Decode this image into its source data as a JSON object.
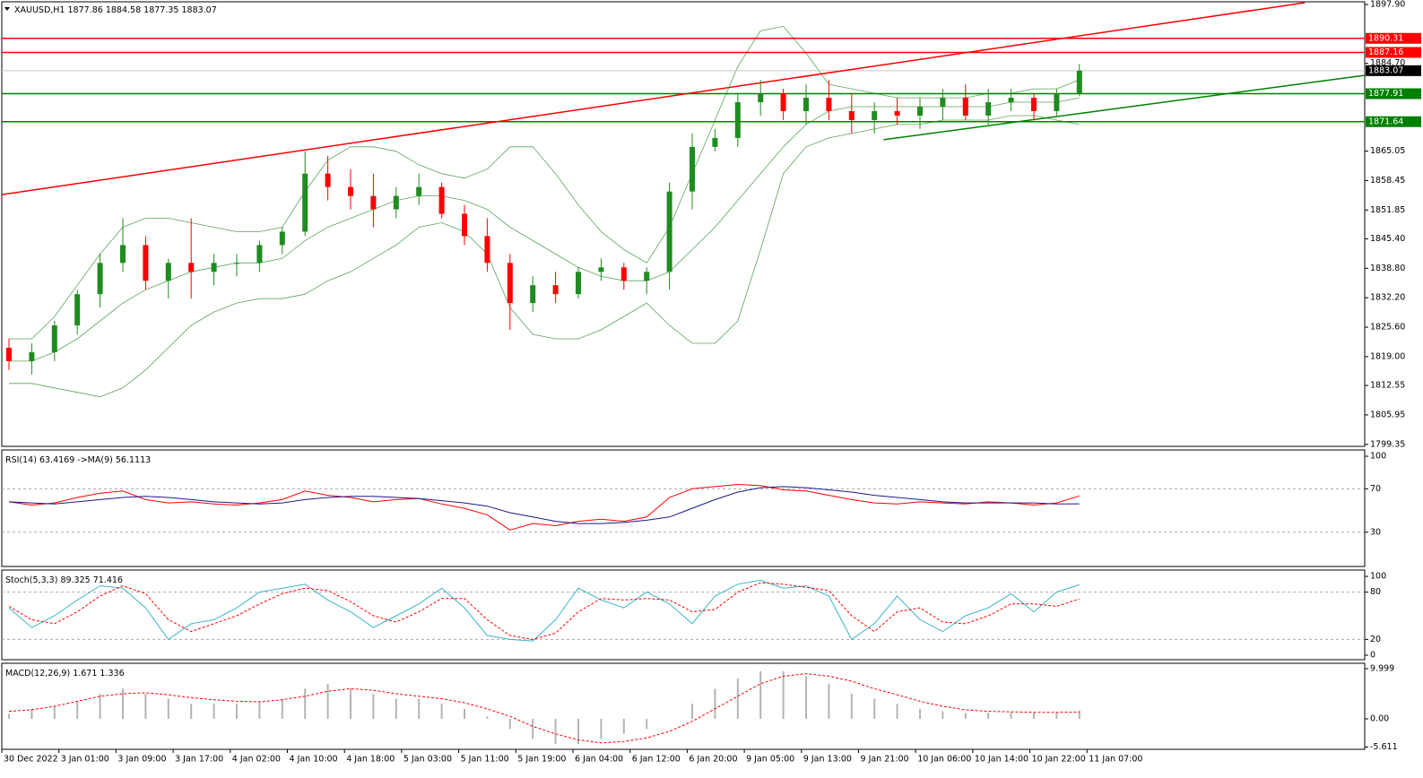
{
  "chart_data": [
    {
      "type": "candlestick",
      "symbol": "XAUUSD,H1",
      "bull_color": "#1e8c1e",
      "bear_color": "#ff0000",
      "candles": [
        [
          1821,
          1823,
          1816,
          1818
        ],
        [
          1818,
          1822,
          1815,
          1820
        ],
        [
          1820,
          1827,
          1818,
          1826
        ],
        [
          1826,
          1834,
          1824,
          1833
        ],
        [
          1833,
          1842,
          1830,
          1840
        ],
        [
          1840,
          1850,
          1838,
          1844
        ],
        [
          1844,
          1846,
          1834,
          1836
        ],
        [
          1836,
          1841,
          1832,
          1840
        ],
        [
          1840,
          1850,
          1832,
          1838
        ],
        [
          1838,
          1842,
          1835,
          1840
        ],
        [
          1840,
          1842,
          1837,
          1840
        ],
        [
          1840,
          1845,
          1838,
          1844
        ],
        [
          1844,
          1848,
          1842,
          1847
        ],
        [
          1847,
          1865,
          1846,
          1860
        ],
        [
          1860,
          1864,
          1854,
          1857
        ],
        [
          1857,
          1861,
          1852,
          1855
        ],
        [
          1855,
          1860,
          1848,
          1852
        ],
        [
          1852,
          1857,
          1850,
          1855
        ],
        [
          1855,
          1860,
          1853,
          1857
        ],
        [
          1857,
          1858,
          1850,
          1851
        ],
        [
          1851,
          1853,
          1844,
          1846
        ],
        [
          1846,
          1850,
          1838,
          1840
        ],
        [
          1840,
          1842,
          1825,
          1831
        ],
        [
          1831,
          1837,
          1829,
          1835
        ],
        [
          1835,
          1838,
          1831,
          1833
        ],
        [
          1833,
          1839,
          1832,
          1838
        ],
        [
          1838,
          1841,
          1836,
          1839
        ],
        [
          1839,
          1840,
          1834,
          1836
        ],
        [
          1836,
          1839,
          1833,
          1838
        ],
        [
          1838,
          1858,
          1834,
          1856
        ],
        [
          1856,
          1869,
          1852,
          1866
        ],
        [
          1866,
          1870,
          1865,
          1868
        ],
        [
          1868,
          1878,
          1866,
          1876
        ],
        [
          1876,
          1881,
          1873,
          1878
        ],
        [
          1878,
          1879,
          1872,
          1874
        ],
        [
          1874,
          1880,
          1871,
          1877
        ],
        [
          1877,
          1881,
          1872,
          1874
        ],
        [
          1874,
          1878,
          1869,
          1872
        ],
        [
          1872,
          1876,
          1869,
          1874
        ],
        [
          1874,
          1877,
          1871,
          1873
        ],
        [
          1873,
          1877,
          1870,
          1875
        ],
        [
          1875,
          1879,
          1872,
          1877
        ],
        [
          1877,
          1880,
          1872,
          1873
        ],
        [
          1873,
          1879,
          1871,
          1876
        ],
        [
          1876,
          1879,
          1874,
          1877
        ],
        [
          1877,
          1878,
          1872,
          1874
        ],
        [
          1874,
          1879,
          1873,
          1878
        ],
        [
          1877.86,
          1884.58,
          1877.35,
          1883.07
        ]
      ],
      "bollinger": {
        "color": "#5aa55a",
        "upper": [
          1823,
          1823,
          1828,
          1835,
          1842,
          1848,
          1850,
          1850,
          1849,
          1848,
          1847,
          1847,
          1848,
          1856,
          1863,
          1866,
          1866,
          1865,
          1862,
          1860,
          1859,
          1861,
          1866,
          1866,
          1860,
          1853,
          1847,
          1843,
          1840,
          1848,
          1860,
          1872,
          1884,
          1892,
          1893,
          1887,
          1880,
          1879,
          1878,
          1877,
          1877,
          1877,
          1877,
          1878,
          1878,
          1879,
          1879,
          1881
        ],
        "middle": [
          1818,
          1818,
          1820,
          1823,
          1827,
          1831,
          1834,
          1836,
          1838,
          1839,
          1840,
          1840,
          1841,
          1845,
          1848,
          1850,
          1852,
          1854,
          1855,
          1855,
          1854,
          1852,
          1848,
          1845,
          1842,
          1839,
          1837,
          1836,
          1836,
          1838,
          1843,
          1848,
          1854,
          1860,
          1866,
          1871,
          1874,
          1875,
          1875,
          1875,
          1875,
          1875,
          1875,
          1875,
          1876,
          1876,
          1876,
          1877
        ],
        "lower": [
          1813,
          1813,
          1812,
          1811,
          1810,
          1812,
          1816,
          1821,
          1826,
          1829,
          1831,
          1832,
          1832,
          1833,
          1836,
          1838,
          1841,
          1844,
          1848,
          1849,
          1847,
          1842,
          1830,
          1824,
          1823,
          1823,
          1825,
          1828,
          1831,
          1826,
          1822,
          1822,
          1827,
          1843,
          1860,
          1866,
          1868,
          1869,
          1870,
          1871,
          1871,
          1872,
          1872,
          1872,
          1873,
          1873,
          1872,
          1871
        ]
      },
      "levels": [
        {
          "value": 1890.31,
          "color": "#ff0000"
        },
        {
          "value": 1887.16,
          "color": "#ff0000"
        },
        {
          "value": 1877.91,
          "color": "#008000"
        },
        {
          "value": 1871.64,
          "color": "#008000"
        }
      ],
      "trendlines": [
        {
          "color": "#ff0000",
          "start": [
            -0.31,
            1855.3
          ],
          "end": [
            56.9,
            1898.3
          ]
        },
        {
          "color": "#008000",
          "start": [
            38.4,
            1867.6
          ],
          "end": [
            59.5,
            1882.0
          ]
        }
      ],
      "ylim": [
        1798.9,
        1898.5
      ],
      "yticks": [
        {
          "value": 1897.9,
          "label": "1897.90"
        },
        {
          "value": 1884.7,
          "label": "1884.70"
        },
        1865.05,
        1858.45,
        1851.85,
        {
          "value": 1845.4,
          "label": "1845.40"
        },
        {
          "value": 1838.8,
          "label": "1838.80"
        },
        {
          "value": 1832.2,
          "label": "1832.20"
        },
        {
          "value": 1825.6,
          "label": "1825.60"
        },
        {
          "value": 1819.0,
          "label": "1819.00"
        },
        1812.55,
        1805.95,
        1799.35
      ],
      "x_labels": [
        "30 Dec 2022",
        "3 Jan 01:00",
        "3 Jan 09:00",
        "3 Jan 17:00",
        "4 Jan 02:00",
        "4 Jan 10:00",
        "4 Jan 18:00",
        "5 Jan 03:00",
        "5 Jan 11:00",
        "5 Jan 19:00",
        "6 Jan 04:00",
        "6 Jan 12:00",
        "6 Jan 20:00",
        "9 Jan 05:00",
        "9 Jan 13:00",
        "9 Jan 21:00",
        "10 Jan 06:00",
        "10 Jan 14:00",
        "10 Jan 22:00",
        "11 Jan 07:00"
      ]
    },
    {
      "type": "line",
      "title": "RSI(14)",
      "ylim": [
        -1.6,
        105.8
      ],
      "yticks": [
        100,
        70,
        30
      ],
      "levels": [
        70,
        30
      ],
      "series": [
        {
          "color": "#ff0000",
          "values": [
            58,
            55,
            57,
            62,
            66,
            68,
            60,
            57,
            58,
            56,
            55,
            57,
            60,
            68,
            64,
            62,
            58,
            60,
            61,
            56,
            52,
            46,
            32,
            38,
            36,
            40,
            42,
            40,
            44,
            62,
            70,
            72,
            74,
            73,
            69,
            68,
            64,
            60,
            57,
            56,
            58,
            57,
            56,
            58,
            57,
            55,
            57,
            63.4169
          ]
        },
        {
          "name": "->MA(9)",
          "color": "#1a1a8c",
          "values": [
            58,
            57,
            56,
            58,
            60,
            62,
            63,
            62,
            60,
            58,
            57,
            56,
            57,
            60,
            62,
            63,
            63,
            62,
            61,
            59,
            57,
            54,
            48,
            44,
            40,
            38,
            38,
            39,
            41,
            44,
            52,
            60,
            67,
            71,
            72,
            71,
            69,
            67,
            64,
            62,
            60,
            58,
            57,
            57,
            57,
            57,
            56,
            56.1113
          ]
        }
      ]
    },
    {
      "type": "line",
      "title": "Stoch(5,3,3)",
      "ylim": [
        -5.7,
        108
      ],
      "yticks": [
        100,
        80,
        20,
        0
      ],
      "levels": [
        80,
        20
      ],
      "series": [
        {
          "color": "#3cb4c8",
          "values": [
            60,
            35,
            50,
            70,
            88,
            85,
            60,
            20,
            40,
            45,
            60,
            80,
            85,
            90,
            70,
            55,
            35,
            50,
            65,
            85,
            60,
            25,
            20,
            18,
            45,
            85,
            70,
            60,
            80,
            65,
            40,
            75,
            90,
            95,
            85,
            88,
            75,
            20,
            40,
            75,
            45,
            30,
            50,
            60,
            78,
            55,
            80,
            89.325
          ]
        },
        {
          "color": "#ff0000",
          "dashed": true,
          "values": [
            62,
            45,
            40,
            55,
            75,
            88,
            78,
            45,
            30,
            40,
            50,
            65,
            78,
            85,
            82,
            68,
            50,
            42,
            55,
            72,
            72,
            45,
            25,
            20,
            28,
            55,
            72,
            70,
            72,
            70,
            55,
            58,
            80,
            92,
            90,
            86,
            82,
            50,
            30,
            55,
            60,
            42,
            40,
            50,
            65,
            65,
            62,
            71.416
          ]
        }
      ]
    },
    {
      "type": "macd",
      "title": "MACD(12,26,9)",
      "ylim": [
        -6.07,
        11.07
      ],
      "yticks": [
        9.999,
        {
          "value": 0,
          "label": "0.00"
        },
        -5.611
      ],
      "histogram": {
        "color": "#b4b4b4",
        "values": [
          1,
          2,
          2.5,
          3.5,
          5,
          6,
          5,
          4,
          3,
          3,
          3,
          3.5,
          4,
          6,
          7,
          6,
          5,
          4,
          4,
          3,
          2,
          0.5,
          -2,
          -4,
          -5,
          -5,
          -4,
          -3,
          -2,
          0,
          3,
          6,
          8,
          9.5,
          9.5,
          8.5,
          7,
          5,
          4,
          3,
          2,
          1.5,
          1.2,
          1.2,
          1.3,
          1.2,
          1.2,
          1.671
        ]
      },
      "signal": {
        "color": "#ff0000",
        "dashed": true,
        "values": [
          1.5,
          1.8,
          2.5,
          3.5,
          4.5,
          5,
          5.2,
          4.8,
          4.2,
          3.8,
          3.5,
          3.4,
          3.8,
          4.5,
          5.5,
          6,
          5.7,
          5,
          4.5,
          4,
          3.2,
          2,
          0.5,
          -1.5,
          -3,
          -4.2,
          -4.8,
          -4.5,
          -3.8,
          -2.5,
          -0.5,
          2,
          4.5,
          7,
          8.5,
          9,
          8.5,
          7.5,
          6,
          4.8,
          3.5,
          2.5,
          1.8,
          1.5,
          1.4,
          1.3,
          1.3,
          1.336
        ]
      }
    }
  ]
}
